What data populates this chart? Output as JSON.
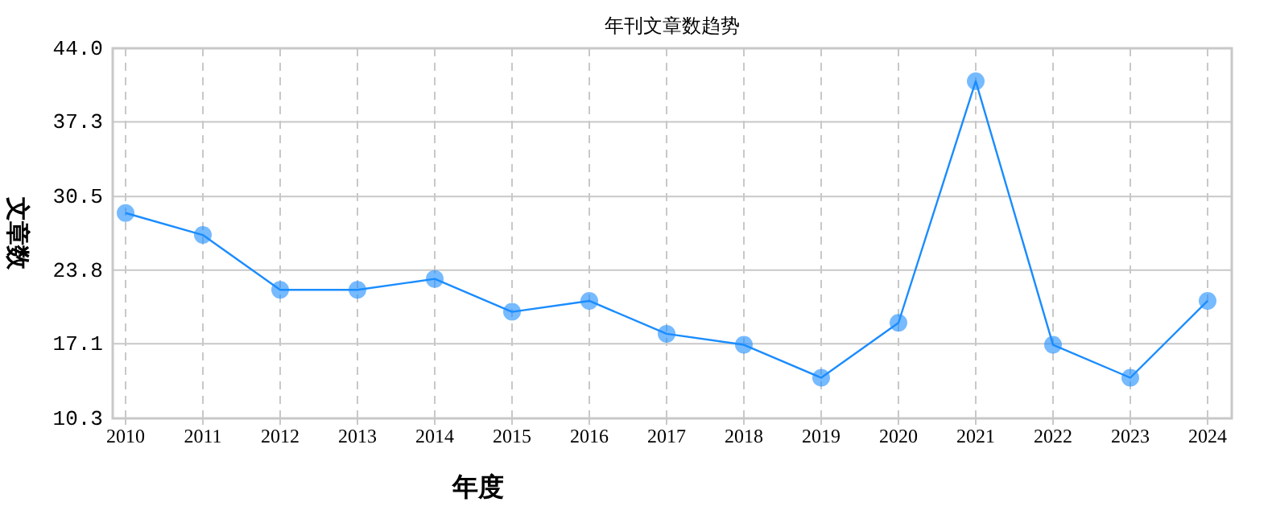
{
  "chart_data": {
    "type": "line",
    "title": "年刊文章数趋势",
    "xlabel": "年度",
    "ylabel": "文章数",
    "categories": [
      "2010",
      "2011",
      "2012",
      "2013",
      "2014",
      "2015",
      "2016",
      "2017",
      "2018",
      "2019",
      "2020",
      "2021",
      "2022",
      "2023",
      "2024"
    ],
    "series": [
      {
        "color": "#1a8cff",
        "values": [
          29,
          27,
          22,
          22,
          23,
          20,
          21,
          18,
          17,
          14,
          19,
          41,
          17,
          14,
          21
        ]
      }
    ],
    "ylim": [
      10.3,
      44.0
    ],
    "yticks": [
      {
        "value": 10.3,
        "label": "10.3"
      },
      {
        "value": 17.1,
        "label": "17.1"
      },
      {
        "value": 23.8,
        "label": "23.8"
      },
      {
        "value": 30.5,
        "label": "30.5"
      },
      {
        "value": 37.3,
        "label": "37.3"
      },
      {
        "value": 44.0,
        "label": "44.0"
      }
    ],
    "grid": true,
    "marker": "circle",
    "line_style": "solid"
  }
}
